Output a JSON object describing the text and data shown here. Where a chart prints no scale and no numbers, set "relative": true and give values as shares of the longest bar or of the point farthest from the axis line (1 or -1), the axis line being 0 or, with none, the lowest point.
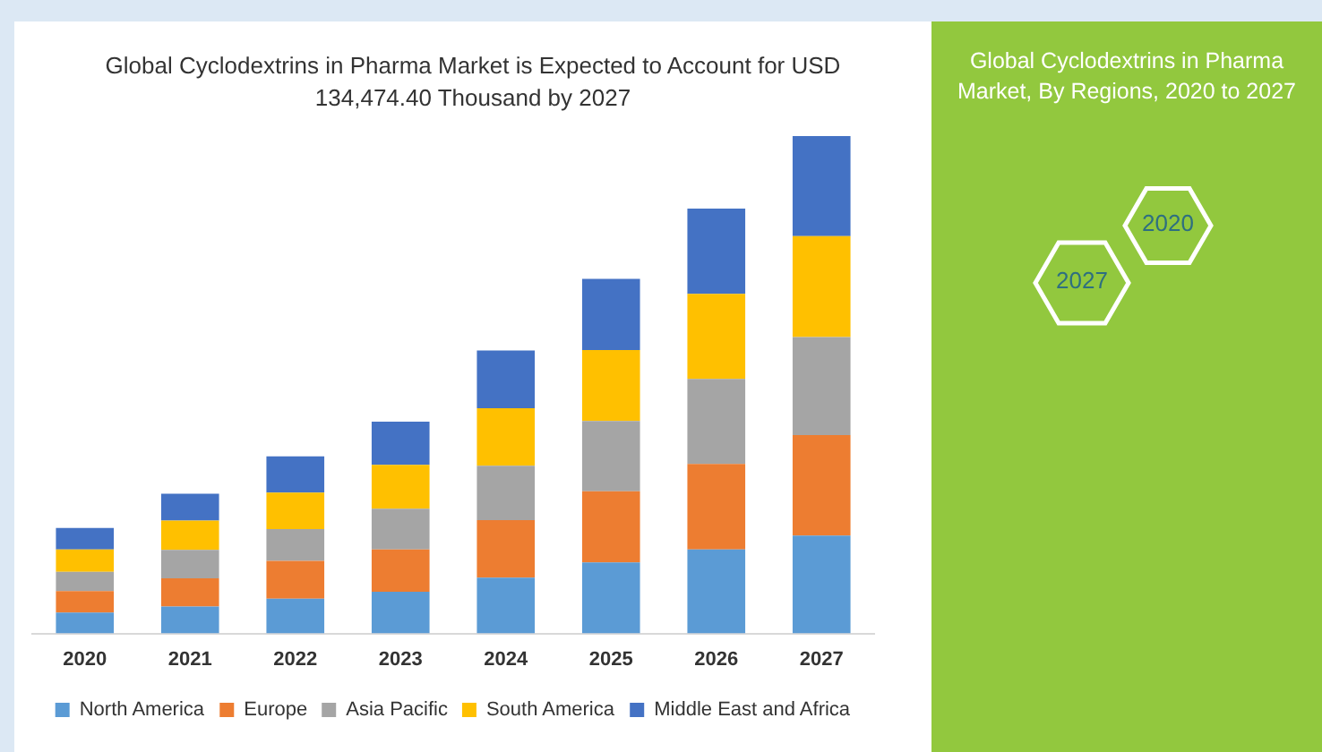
{
  "chart_data": {
    "type": "bar",
    "title": "Global Cyclodextrins in Pharma Market is Expected to Account for USD 134,474.40 Thousand by 2027",
    "subtitle": "Global Cyclodextrins in Pharma Market, By Regions, 2020 to 2027",
    "annotations": [
      "2020",
      "2027"
    ],
    "categories": [
      "2020",
      "2021",
      "2022",
      "2023",
      "2024",
      "2025",
      "2026",
      "2027"
    ],
    "stacked": true,
    "relative": true,
    "legend": "bottom",
    "grid": false,
    "series": [
      {
        "name": "North America",
        "color": "#5b9bd5",
        "values": [
          0.042,
          0.054,
          0.07,
          0.084,
          0.112,
          0.143,
          0.169,
          0.197
        ]
      },
      {
        "name": "Europe",
        "color": "#ed7d31",
        "values": [
          0.043,
          0.057,
          0.076,
          0.085,
          0.116,
          0.143,
          0.172,
          0.202
        ]
      },
      {
        "name": "Asia Pacific",
        "color": "#a5a5a5",
        "values": [
          0.039,
          0.057,
          0.064,
          0.082,
          0.109,
          0.141,
          0.171,
          0.197
        ]
      },
      {
        "name": "South America",
        "color": "#ffc000",
        "values": [
          0.045,
          0.059,
          0.073,
          0.088,
          0.116,
          0.143,
          0.171,
          0.203
        ]
      },
      {
        "name": "Middle East and Africa",
        "color": "#4472c4",
        "values": [
          0.043,
          0.054,
          0.073,
          0.087,
          0.116,
          0.143,
          0.171,
          0.201
        ]
      }
    ]
  }
}
